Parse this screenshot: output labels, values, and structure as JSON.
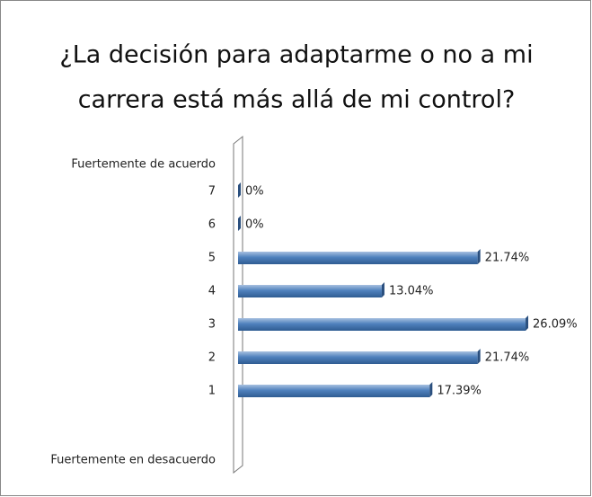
{
  "chart_data": {
    "type": "bar",
    "orientation": "horizontal",
    "title": [
      "¿La decisión para adaptarme o no a mi",
      "carrera está más allá de mi control?"
    ],
    "annotations": [
      "Fuertemente de acuerdo",
      "Fuertemente en desacuerdo"
    ],
    "categories": [
      "7",
      "6",
      "5",
      "4",
      "3",
      "2",
      "1"
    ],
    "values": [
      0,
      0,
      21.74,
      13.04,
      26.09,
      21.74,
      17.39
    ],
    "value_labels": [
      "0%",
      "0%",
      "21.74%",
      "13.04%",
      "26.09%",
      "21.74%",
      "17.39%"
    ],
    "color": "#4f81bd",
    "xlim": [
      0,
      30
    ]
  }
}
